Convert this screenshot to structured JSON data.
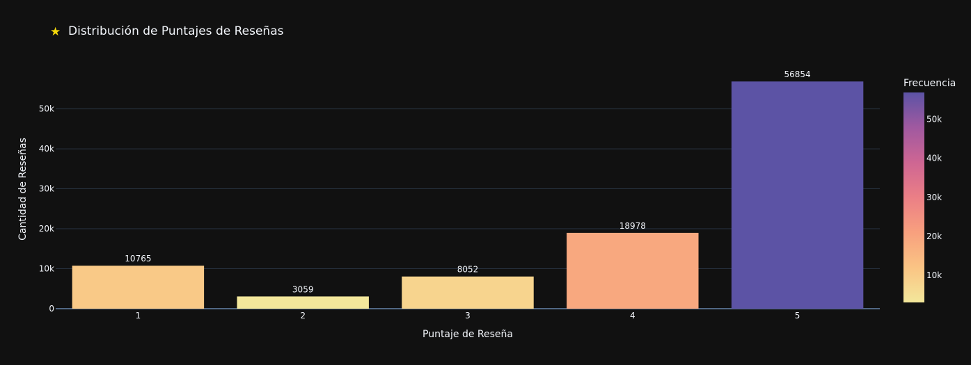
{
  "chart_data": {
    "type": "bar",
    "title_icon": "★",
    "title": "Distribución de Puntajes de Reseñas",
    "categories": [
      "1",
      "2",
      "3",
      "4",
      "5"
    ],
    "values": [
      10765,
      3059,
      8052,
      18978,
      56854
    ],
    "data_labels": [
      "10765",
      "3059",
      "8052",
      "18978",
      "56854"
    ],
    "xlabel": "Puntaje de Reseña",
    "ylabel": "Cantidad de Reseñas",
    "ylim": [
      0,
      59846
    ],
    "yticks": [
      0,
      10000,
      20000,
      30000,
      40000,
      50000
    ],
    "ytick_labels": [
      "0",
      "10k",
      "20k",
      "30k",
      "40k",
      "50k"
    ],
    "grid": true,
    "colorscale": {
      "title": "Frecuencia",
      "range": [
        3059,
        56854
      ],
      "stops": [
        "#f3e79b",
        "#fac484",
        "#f8a07e",
        "#eb7f86",
        "#ce6693",
        "#a059a0",
        "#5c53a5"
      ],
      "ticks": [
        10000,
        20000,
        30000,
        40000,
        50000
      ],
      "tick_labels": [
        "10k",
        "20k",
        "30k",
        "40k",
        "50k"
      ],
      "placement": "right"
    },
    "colors": {
      "background": "#111111",
      "grid": "#283442",
      "text": "#f2f5fa",
      "star": "#f5d90a"
    }
  }
}
